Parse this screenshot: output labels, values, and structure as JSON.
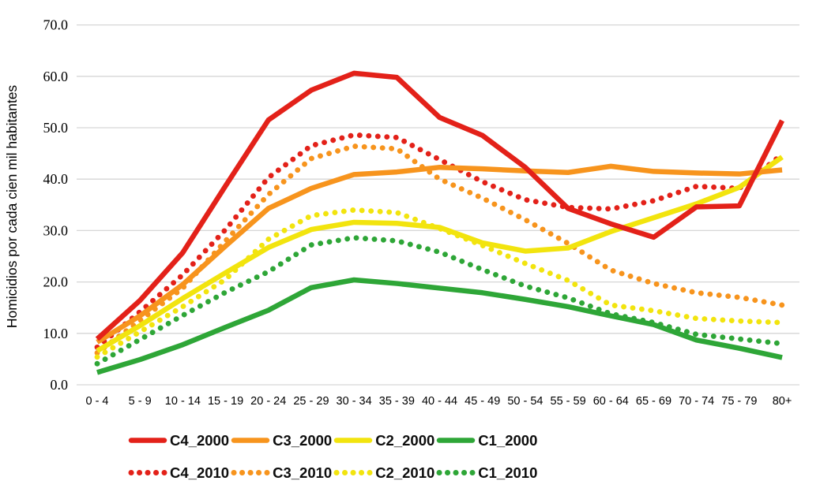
{
  "chart_data": {
    "type": "line",
    "title": "",
    "xlabel": "",
    "ylabel": "Homicidios por cada cien mil habitantes",
    "ylim": [
      0,
      70
    ],
    "ytick_step": 10,
    "ytick_labels": [
      "0.0",
      "10.0",
      "20.0",
      "30.0",
      "40.0",
      "50.0",
      "60.0",
      "70.0"
    ],
    "grid": true,
    "legend_position": "bottom-two-rows",
    "categories": [
      "0 - 4",
      "5 - 9",
      "10 - 14",
      "15 - 19",
      "20 - 24",
      "25 - 29",
      "30 - 34",
      "35 - 39",
      "40 - 44",
      "45 - 49",
      "50 - 54",
      "55 - 59",
      "60 - 64",
      "65 - 69",
      "70 - 74",
      "75 - 79",
      "80+"
    ],
    "series": [
      {
        "name": "C4_2000",
        "style": "solid",
        "color": "#e32119",
        "values": [
          8.9,
          16.4,
          25.7,
          38.7,
          51.5,
          57.3,
          60.6,
          59.8,
          52.0,
          48.5,
          42.3,
          34.3,
          31.3,
          28.7,
          34.6,
          34.8,
          51.4
        ]
      },
      {
        "name": "C3_2000",
        "style": "solid",
        "color": "#f7941d",
        "values": [
          8.3,
          13.4,
          19.5,
          27.0,
          34.3,
          38.2,
          40.9,
          41.4,
          42.3,
          42.0,
          41.6,
          41.3,
          42.5,
          41.5,
          41.2,
          41.0,
          41.8
        ]
      },
      {
        "name": "C2_2000",
        "style": "solid",
        "color": "#f2e40e",
        "values": [
          6.6,
          11.5,
          16.8,
          21.8,
          26.7,
          30.2,
          31.6,
          31.4,
          30.6,
          27.6,
          26.0,
          26.6,
          29.8,
          32.5,
          35.2,
          38.4,
          44.3
        ]
      },
      {
        "name": "C1_2000",
        "style": "solid",
        "color": "#2ea637",
        "values": [
          2.4,
          4.9,
          7.8,
          11.2,
          14.5,
          18.9,
          20.4,
          19.7,
          18.8,
          17.9,
          16.6,
          15.2,
          13.4,
          11.7,
          8.7,
          7.1,
          5.3
        ]
      },
      {
        "name": "C4_2010",
        "style": "dotted",
        "color": "#e32119",
        "values": [
          7.3,
          14.2,
          21.4,
          30.2,
          40.3,
          46.5,
          48.6,
          48.1,
          43.8,
          39.5,
          36.0,
          34.5,
          34.2,
          35.8,
          38.6,
          38.2,
          44.8
        ]
      },
      {
        "name": "C3_2010",
        "style": "dotted",
        "color": "#f7941d",
        "values": [
          6.2,
          12.5,
          18.8,
          28.0,
          37.0,
          44.0,
          46.4,
          45.9,
          40.0,
          36.3,
          32.1,
          27.5,
          22.3,
          19.7,
          17.9,
          17.0,
          15.5
        ]
      },
      {
        "name": "C2_2010",
        "style": "dotted",
        "color": "#f2e40e",
        "values": [
          5.4,
          10.3,
          15.2,
          20.5,
          28.3,
          32.9,
          34.0,
          33.5,
          30.4,
          27.1,
          23.6,
          20.3,
          15.5,
          14.4,
          12.9,
          12.4,
          12.1
        ]
      },
      {
        "name": "C1_2010",
        "style": "dotted",
        "color": "#2ea637",
        "values": [
          4.1,
          8.8,
          13.5,
          18.0,
          22.0,
          27.2,
          28.6,
          28.0,
          25.8,
          22.4,
          19.2,
          16.9,
          13.8,
          12.1,
          9.8,
          8.9,
          8.0
        ]
      }
    ],
    "colors": {
      "gridline": "#d6d6d6",
      "text": "#000000",
      "c4": "#e32119",
      "c3": "#f7941d",
      "c2": "#f2e40e",
      "c1": "#2ea637"
    }
  }
}
